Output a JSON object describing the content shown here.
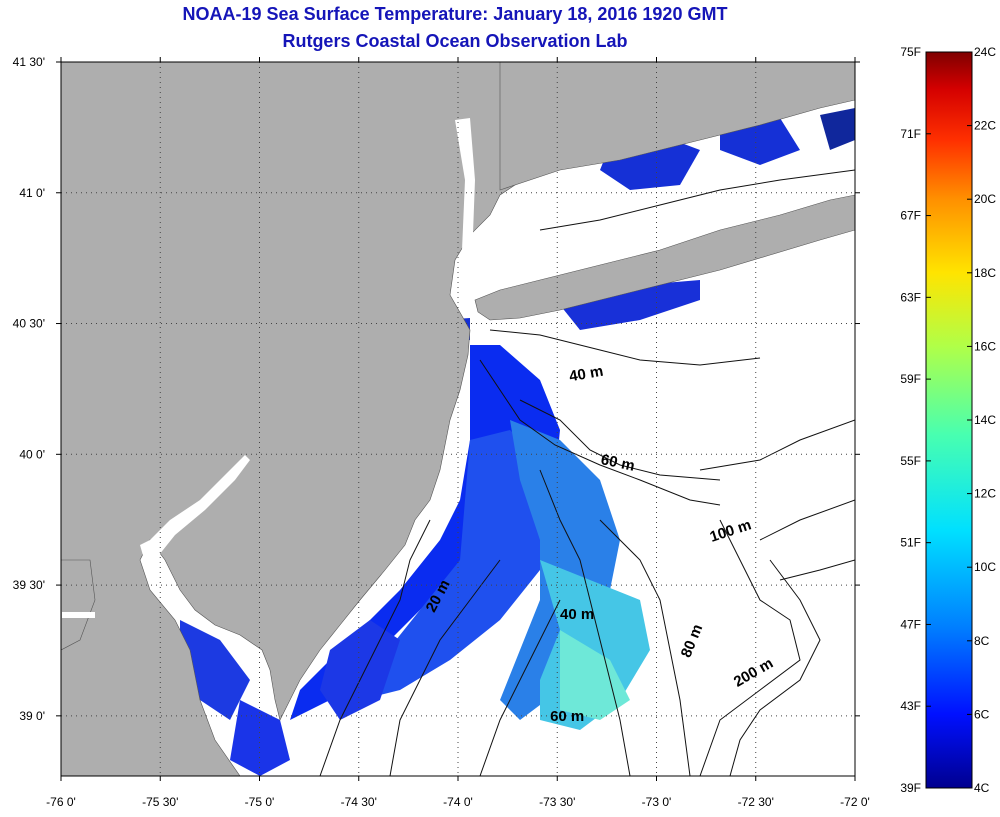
{
  "title_line1": "NOAA-19 Sea Surface Temperature:  January 18, 2016 1920 GMT",
  "title_line2": "Rutgers Coastal Ocean Observation Lab",
  "lat_labels": [
    {
      "text": "41 30'",
      "lat": 41.5
    },
    {
      "text": "41 0'",
      "lat": 41.0
    },
    {
      "text": "40 30'",
      "lat": 40.5
    },
    {
      "text": "40 0'",
      "lat": 40.0
    },
    {
      "text": "39 30'",
      "lat": 39.5
    },
    {
      "text": "39 0'",
      "lat": 39.0
    }
  ],
  "lon_labels": [
    {
      "text": "-76 0'",
      "lon": -76.0
    },
    {
      "text": "-75 30'",
      "lon": -75.5
    },
    {
      "text": "-75 0'",
      "lon": -75.0
    },
    {
      "text": "-74 30'",
      "lon": -74.5
    },
    {
      "text": "-74 0'",
      "lon": -74.0
    },
    {
      "text": "-73 30'",
      "lon": -73.5
    },
    {
      "text": "-73 0'",
      "lon": -73.0
    },
    {
      "text": "-72 30'",
      "lon": -72.5
    },
    {
      "text": "-72 0'",
      "lon": -72.0
    }
  ],
  "depth_labels": [
    {
      "text": "40 m",
      "lon": -73.35,
      "lat": 40.29,
      "rot": -10
    },
    {
      "text": "60 m",
      "lon": -73.2,
      "lat": 39.95,
      "rot": 12
    },
    {
      "text": "100 m",
      "lon": -72.62,
      "lat": 39.69,
      "rot": -18
    },
    {
      "text": "20 m",
      "lon": -74.08,
      "lat": 39.45,
      "rot": -62
    },
    {
      "text": "40 m",
      "lon": -73.4,
      "lat": 39.37,
      "rot": 0
    },
    {
      "text": "80 m",
      "lon": -72.8,
      "lat": 39.28,
      "rot": -68
    },
    {
      "text": "200 m",
      "lon": -72.5,
      "lat": 39.15,
      "rot": -30
    },
    {
      "text": "60 m",
      "lon": -73.45,
      "lat": 38.98,
      "rot": 0
    }
  ],
  "colorbar": {
    "f_labels": [
      "75F",
      "71F",
      "67F",
      "63F",
      "59F",
      "55F",
      "51F",
      "47F",
      "43F",
      "39F"
    ],
    "c_labels": [
      "24C",
      "22C",
      "20C",
      "18C",
      "16C",
      "14C",
      "12C",
      "10C",
      "8C",
      "6C",
      "4C"
    ],
    "colors": [
      "#7f0000",
      "#d40000",
      "#ff3000",
      "#ff9000",
      "#ffe400",
      "#b0ff48",
      "#48ffb0",
      "#00e0ff",
      "#0080ff",
      "#0010ff",
      "#00008f"
    ]
  },
  "colors": {
    "land": "#aeaeae",
    "ocean_nodata": "#ffffff",
    "title": "#1515b8"
  }
}
